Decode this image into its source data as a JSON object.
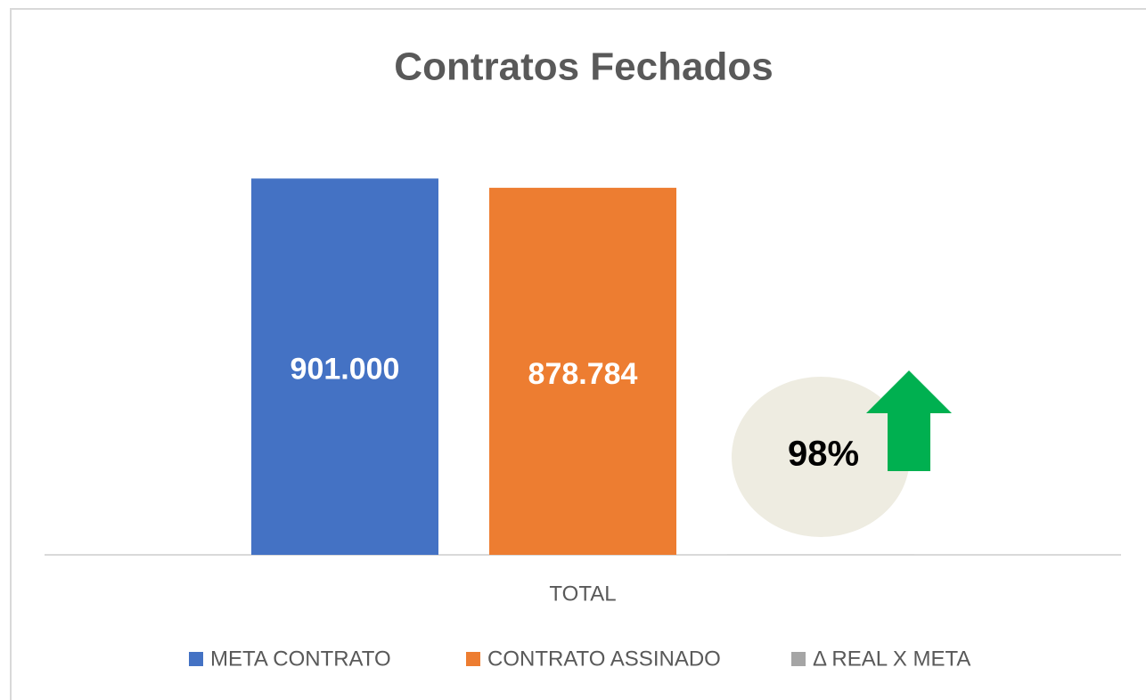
{
  "chart_data": {
    "type": "bar",
    "title": "Contratos Fechados",
    "categories": [
      "TOTAL"
    ],
    "series": [
      {
        "name": "META CONTRATO",
        "color": "#4472c4",
        "values": [
          901000
        ],
        "value_labels": [
          "901.000"
        ]
      },
      {
        "name": "CONTRATO ASSINADO",
        "color": "#ed7d31",
        "values": [
          878784
        ],
        "value_labels": [
          "878.784"
        ]
      },
      {
        "name": "Δ REAL X META",
        "color": "#a5a5a5",
        "values": [
          98
        ],
        "value_labels": [
          "98%"
        ]
      }
    ],
    "ylim": [
      0,
      1000000
    ],
    "legend": "bottom"
  }
}
